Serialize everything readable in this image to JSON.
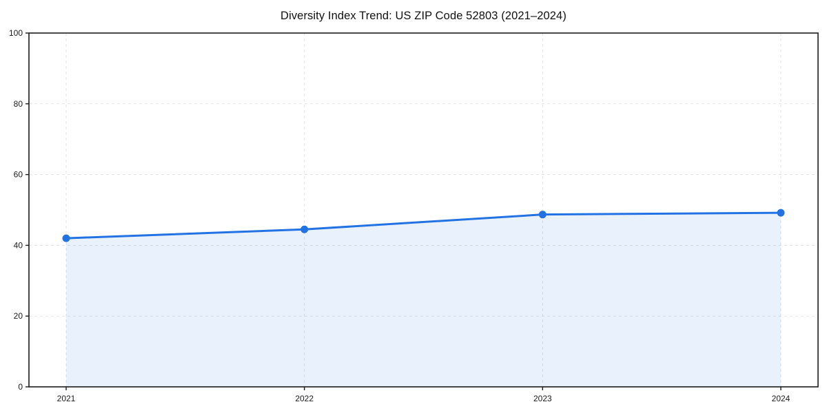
{
  "chart_data": {
    "type": "area",
    "title": "Diversity Index Trend: US ZIP Code 52803 (2021–2024)",
    "categories": [
      "2021",
      "2022",
      "2023",
      "2024"
    ],
    "series": [
      {
        "name": "Diversity Index",
        "values": [
          42,
          44.5,
          48.7,
          49.2
        ]
      }
    ],
    "xlabel": "",
    "ylabel": "",
    "ylim": [
      0,
      100
    ],
    "yticks": [
      0,
      20,
      40,
      60,
      80,
      100
    ],
    "grid": true,
    "grid_style": "dashed",
    "legend": false,
    "colors": {
      "line": "#2272e3",
      "marker": "#2272e3",
      "fill": "rgba(34, 114, 227, 0.10)",
      "grid": "#e3e3e3",
      "axis": "#1a1a1a",
      "title": "#111111",
      "background": "#ffffff"
    }
  }
}
